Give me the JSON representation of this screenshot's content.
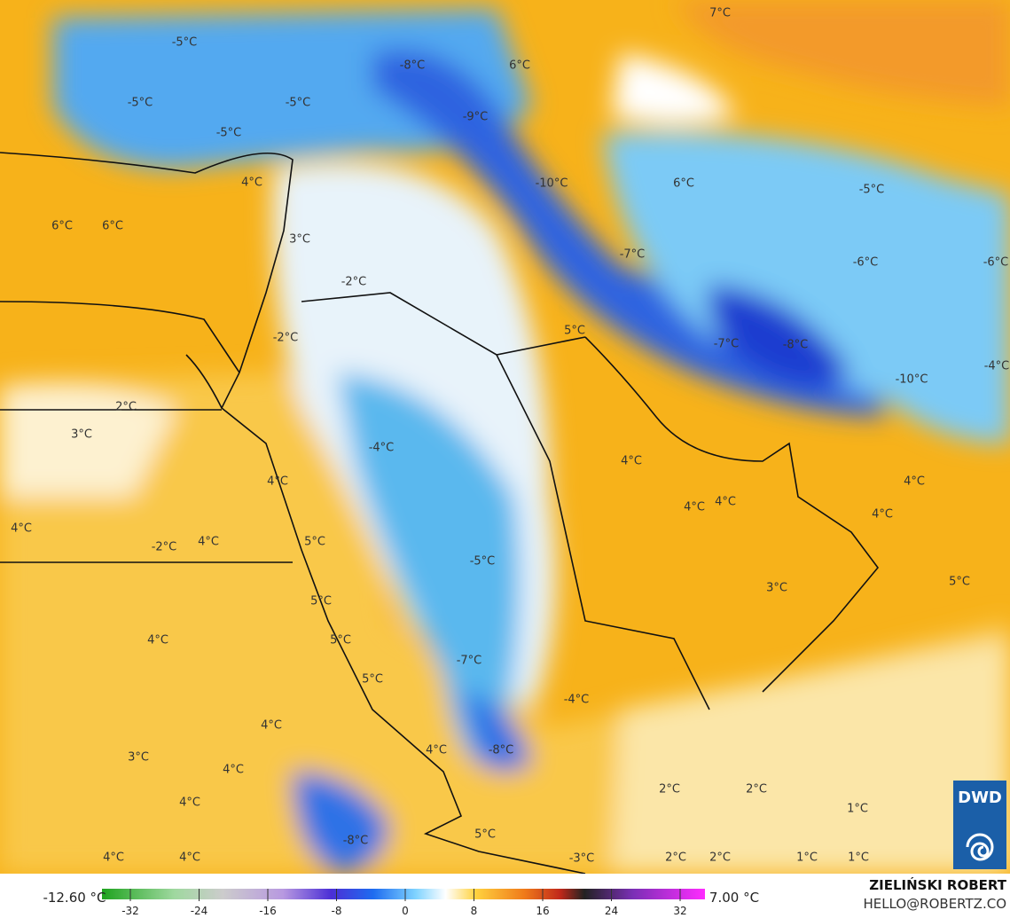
{
  "map": {
    "labels": [
      "-5°C",
      "-8°C",
      "6°C",
      "7°C",
      "-5°C",
      "-5°C",
      "-5°C",
      "-9°C",
      "-10°C",
      "6°C",
      "-5°C",
      "4°C",
      "6°C",
      "6°C",
      "3°C",
      "-7°C",
      "-6°C",
      "-6°C",
      "-2°C",
      "5°C",
      "-2°C",
      "-7°C",
      "-8°C",
      "-4°C",
      "-10°C",
      "2°C",
      "3°C",
      "-4°C",
      "4°C",
      "4°C",
      "4°C",
      "4°C",
      "4°C",
      "4°C",
      "-2°C",
      "4°C",
      "4°C",
      "5°C",
      "-5°C",
      "3°C",
      "5°C",
      "5°C",
      "4°C",
      "5°C",
      "-7°C",
      "5°C",
      "-4°C",
      "4°C",
      "3°C",
      "-8°C",
      "4°C",
      "4°C",
      "2°C",
      "2°C",
      "4°C",
      "1°C",
      "-8°C",
      "5°C",
      "4°C",
      "4°C",
      "-3°C",
      "2°C",
      "2°C",
      "1°C",
      "1°C"
    ]
  },
  "colorbar": {
    "min_label": "-12.60 °C",
    "max_label": "7.00 °C",
    "ticks": [
      -32,
      -24,
      -16,
      -8,
      0,
      8,
      16,
      24,
      32
    ]
  },
  "credits": {
    "author": "ZIELIŃSKI ROBERT",
    "contact": "HELLO@ROBERTZ.CO",
    "logo": "DWD"
  }
}
